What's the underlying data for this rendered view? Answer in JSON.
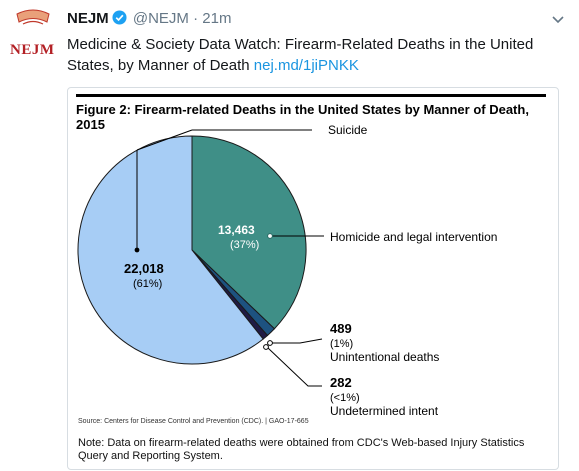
{
  "tweet": {
    "logo_text": "NEJM",
    "author_name": "NEJM",
    "handle": "@NEJM",
    "separator": "·",
    "time": "21m",
    "text": "Medicine & Society Data Watch: Firearm-Related Deaths in the United States, by Manner of Death",
    "link": "nej.md/1jiPNKK"
  },
  "figure": {
    "title": "Figure 2: Firearm-related Deaths in the United States by Manner of Death, 2015",
    "source": "Source: Centers for Disease Control and Prevention (CDC).  |  GAO-17-665",
    "note": "Note: Data on firearm-related deaths were obtained from CDC's Web-based Injury Statistics Query and Reporting System."
  },
  "chart_data": {
    "type": "pie",
    "title": "Figure 2: Firearm-related Deaths in the United States by Manner of Death, 2015",
    "slices": [
      {
        "name": "Suicide",
        "value": 22018,
        "value_label": "22,018",
        "percent_label": "(61%)",
        "color": "#a7cdf5"
      },
      {
        "name": "Homicide and legal intervention",
        "value": 13463,
        "value_label": "13,463",
        "percent_label": "(37%)",
        "color": "#3f8f87"
      },
      {
        "name": "Unintentional deaths",
        "value": 489,
        "value_label": "489",
        "percent_label": "(1%)",
        "color": "#1d5280"
      },
      {
        "name": "Undetermined intent",
        "value": 282,
        "value_label": "282",
        "percent_label": "(<1%)",
        "color": "#1f1b45"
      }
    ]
  }
}
